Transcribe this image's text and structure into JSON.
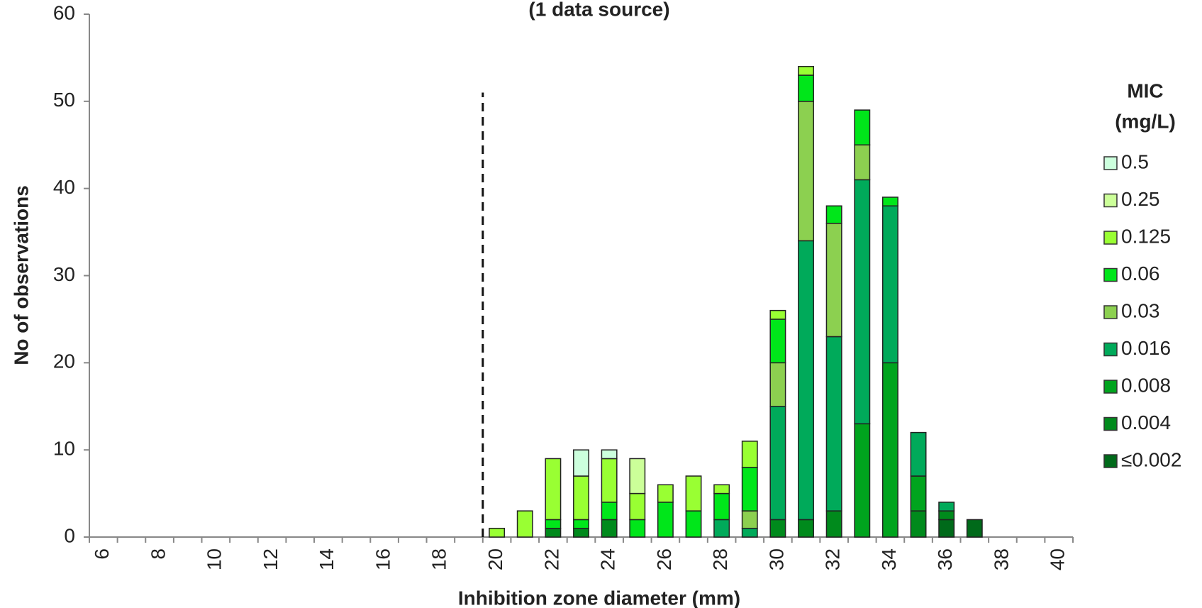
{
  "chart_data": {
    "type": "stacked_bar",
    "title": "(1 data source)",
    "x_label": "Inhibition zone diameter (mm)",
    "y_label": "No of observations",
    "legend_title": [
      "MIC",
      "(mg/L)"
    ],
    "legend_position": "right",
    "categories": [
      6,
      null,
      8,
      null,
      10,
      null,
      12,
      null,
      14,
      null,
      16,
      null,
      18,
      null,
      20,
      null,
      22,
      null,
      24,
      null,
      26,
      null,
      28,
      null,
      30,
      null,
      32,
      null,
      34,
      null,
      36,
      null,
      38,
      null,
      40
    ],
    "series": [
      {
        "name": "≤0.002",
        "color": "#006a1a",
        "values": [
          0,
          0,
          0,
          0,
          0,
          0,
          0,
          0,
          0,
          0,
          0,
          0,
          0,
          0,
          0,
          0,
          0,
          0,
          0,
          0,
          0,
          0,
          0,
          0,
          0,
          0,
          0,
          0,
          0,
          0,
          2,
          2,
          0,
          0,
          0
        ]
      },
      {
        "name": "0.004",
        "color": "#008a1c",
        "values": [
          0,
          0,
          0,
          0,
          0,
          0,
          0,
          0,
          0,
          0,
          0,
          0,
          0,
          0,
          0,
          0,
          1,
          1,
          2,
          0,
          0,
          0,
          0,
          0,
          2,
          2,
          3,
          0,
          0,
          3,
          1,
          0,
          0,
          0,
          0
        ]
      },
      {
        "name": "0.008",
        "color": "#00a41e",
        "values": [
          0,
          0,
          0,
          0,
          0,
          0,
          0,
          0,
          0,
          0,
          0,
          0,
          0,
          0,
          0,
          0,
          0,
          0,
          0,
          0,
          0,
          0,
          0,
          0,
          0,
          0,
          0,
          13,
          20,
          4,
          0,
          0,
          0,
          0,
          0
        ]
      },
      {
        "name": "0.016",
        "color": "#00aa5a",
        "values": [
          0,
          0,
          0,
          0,
          0,
          0,
          0,
          0,
          0,
          0,
          0,
          0,
          0,
          0,
          0,
          0,
          0,
          0,
          0,
          0,
          0,
          0,
          2,
          1,
          13,
          32,
          20,
          28,
          18,
          5,
          1,
          0,
          0,
          0,
          0
        ]
      },
      {
        "name": "0.03",
        "color": "#8cd050",
        "values": [
          0,
          0,
          0,
          0,
          0,
          0,
          0,
          0,
          0,
          0,
          0,
          0,
          0,
          0,
          0,
          0,
          0,
          0,
          0,
          0,
          0,
          0,
          0,
          2,
          5,
          16,
          13,
          4,
          0,
          0,
          0,
          0,
          0,
          0,
          0
        ]
      },
      {
        "name": "0.06",
        "color": "#00e61a",
        "values": [
          0,
          0,
          0,
          0,
          0,
          0,
          0,
          0,
          0,
          0,
          0,
          0,
          0,
          0,
          0,
          0,
          1,
          1,
          2,
          2,
          4,
          3,
          3,
          5,
          5,
          3,
          2,
          4,
          1,
          0,
          0,
          0,
          0,
          0,
          0
        ]
      },
      {
        "name": "0.125",
        "color": "#99ff33",
        "values": [
          0,
          0,
          0,
          0,
          0,
          0,
          0,
          0,
          0,
          0,
          0,
          0,
          0,
          0,
          1,
          3,
          7,
          5,
          5,
          3,
          2,
          4,
          1,
          3,
          1,
          1,
          0,
          0,
          0,
          0,
          0,
          0,
          0,
          0,
          0
        ]
      },
      {
        "name": "0.25",
        "color": "#ccff99",
        "values": [
          0,
          0,
          0,
          0,
          0,
          0,
          0,
          0,
          0,
          0,
          0,
          0,
          0,
          0,
          0,
          0,
          0,
          0,
          0,
          4,
          0,
          0,
          0,
          0,
          0,
          0,
          0,
          0,
          0,
          0,
          0,
          0,
          0,
          0,
          0
        ]
      },
      {
        "name": "0.5",
        "color": "#ccffdd",
        "values": [
          0,
          0,
          0,
          0,
          0,
          0,
          0,
          0,
          0,
          0,
          0,
          0,
          0,
          0,
          0,
          0,
          0,
          3,
          1,
          0,
          0,
          0,
          0,
          0,
          0,
          0,
          0,
          0,
          0,
          0,
          0,
          0,
          0,
          0,
          0
        ]
      }
    ],
    "ylim": [
      0,
      60
    ],
    "yticks": [
      0,
      10,
      20,
      30,
      40,
      50,
      60
    ],
    "vline": {
      "x": 19.5,
      "ymax": 51
    }
  }
}
